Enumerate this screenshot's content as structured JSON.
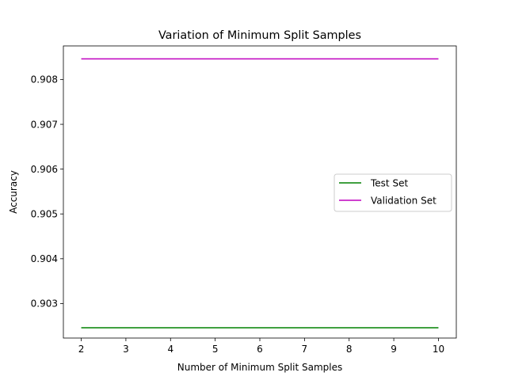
{
  "chart_data": {
    "type": "line",
    "title": "Variation of Minimum Split Samples",
    "xlabel": "Number of Minimum Split Samples",
    "ylabel": "Accuracy",
    "x": [
      2,
      3,
      4,
      5,
      6,
      7,
      8,
      9,
      10
    ],
    "xlim": [
      1.6,
      10.4
    ],
    "ylim": [
      0.90223,
      0.90875
    ],
    "xticks": [
      "2",
      "3",
      "4",
      "5",
      "6",
      "7",
      "8",
      "9",
      "10"
    ],
    "yticks": [
      "0.903",
      "0.904",
      "0.905",
      "0.906",
      "0.907",
      "0.908"
    ],
    "series": [
      {
        "name": "Test Set",
        "color": "#008000",
        "values": [
          0.90246,
          0.90246,
          0.90246,
          0.90246,
          0.90246,
          0.90246,
          0.90246,
          0.90246,
          0.90246
        ]
      },
      {
        "name": "Validation Set",
        "color": "#bf00bf",
        "values": [
          0.90846,
          0.90846,
          0.90846,
          0.90846,
          0.90846,
          0.90846,
          0.90846,
          0.90846,
          0.90846
        ]
      }
    ],
    "legend_position": "center-right",
    "grid": false
  }
}
